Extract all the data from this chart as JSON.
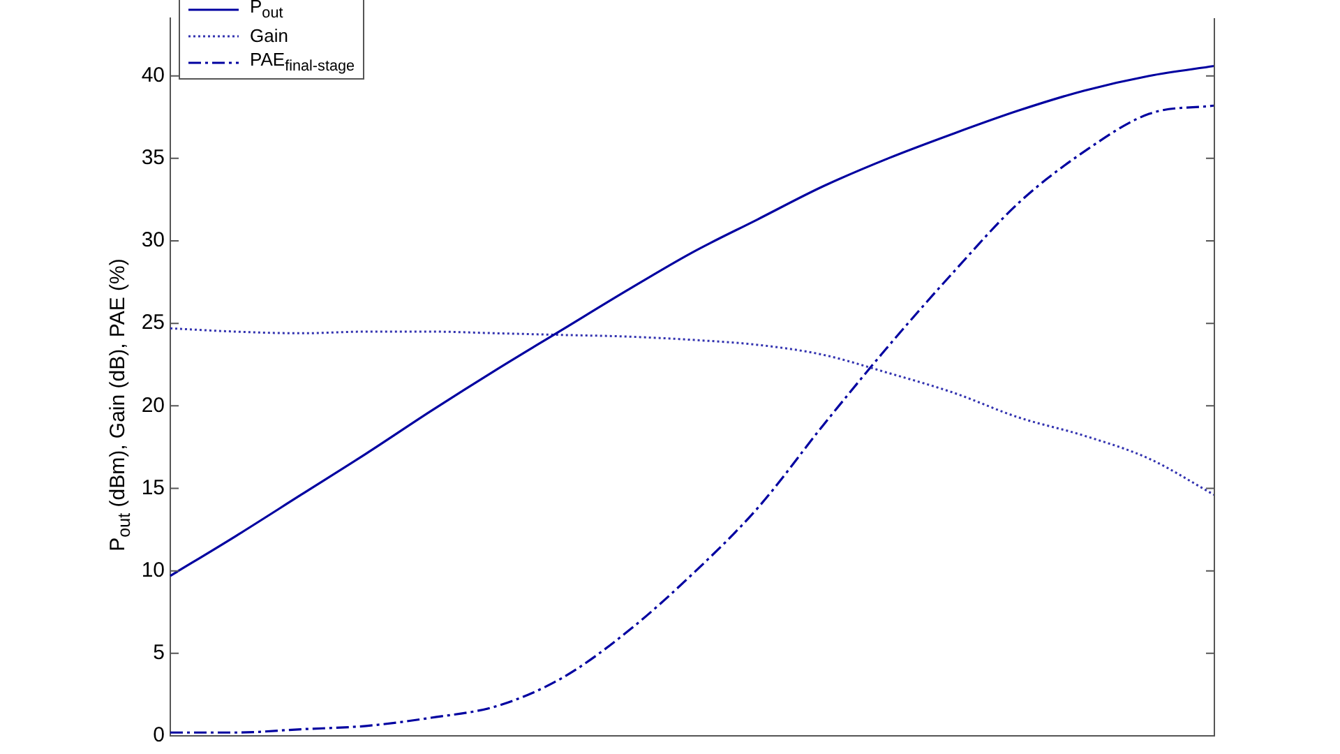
{
  "chart_data": {
    "type": "line",
    "ylabel": "P$_{out}$ (dBm), Gain (dB), PAE (%)",
    "categories": [
      null,
      null,
      null,
      null,
      null,
      null,
      null,
      null,
      null,
      null,
      null,
      null,
      null,
      null,
      null,
      null,
      null
    ],
    "series": [
      {
        "name": "P$_{out}$",
        "color": "#0000a0",
        "line_style": "solid",
        "values": [
          9.7,
          12.1,
          14.6,
          17.1,
          19.7,
          22.2,
          24.6,
          27.0,
          29.3,
          31.3,
          33.3,
          35.0,
          36.5,
          37.9,
          39.1,
          40.0,
          40.6
        ]
      },
      {
        "name": "Gain",
        "color": "#3333b0",
        "line_style": "dotted",
        "values": [
          24.7,
          24.5,
          24.4,
          24.5,
          24.5,
          24.4,
          24.3,
          24.2,
          24.0,
          23.7,
          23.1,
          22.0,
          20.8,
          19.3,
          18.2,
          16.8,
          14.6
        ]
      },
      {
        "name": "PAE$_{final-stage}$",
        "color": "#0000a0",
        "line_style": "dashdot",
        "values": [
          0.2,
          0.2,
          0.4,
          0.6,
          1.1,
          1.8,
          3.5,
          6.3,
          9.8,
          13.8,
          18.8,
          23.6,
          28.1,
          32.3,
          35.4,
          37.7,
          38.2
        ]
      }
    ],
    "ylim": [
      0,
      43.5
    ],
    "yticks": [
      0,
      5,
      10,
      15,
      20,
      25,
      30,
      35,
      40
    ],
    "grid": false,
    "legend": "top left",
    "marker": "none"
  }
}
